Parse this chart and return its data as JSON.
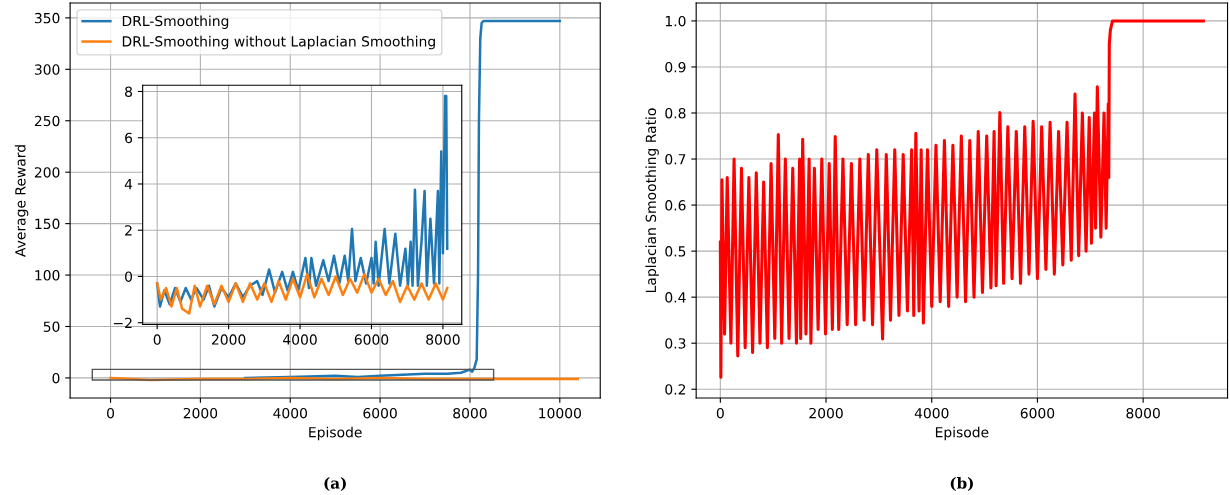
{
  "chart_data": [
    {
      "type": "line",
      "xlabel": "Episode",
      "ylabel": "Average Reward",
      "xlim": [
        -900,
        10900
      ],
      "ylim": [
        -19.5,
        364.5
      ],
      "xticks": [
        0,
        2000,
        4000,
        6000,
        8000,
        10000
      ],
      "yticks": [
        0,
        50,
        100,
        150,
        200,
        250,
        300,
        350
      ],
      "grid": true,
      "legend": "top left",
      "annotations": [
        "(a)"
      ],
      "series": [
        {
          "name": "DRL-Smoothing",
          "color": "#1f77b4",
          "x": [
            3000,
            4000,
            5000,
            5500,
            6000,
            7000,
            7500,
            7800,
            8000,
            8050,
            8100,
            8150,
            8180,
            8200,
            8230,
            8260,
            8300,
            10000
          ],
          "values": [
            0,
            1,
            2,
            1,
            2,
            4,
            4,
            5,
            8,
            6,
            10,
            18,
            100,
            250,
            330,
            345,
            347,
            347
          ]
        },
        {
          "name": "DRL-Smoothing without Laplacian Smoothing",
          "color": "#ff7f0e",
          "x": [
            0,
            900,
            2000,
            3000,
            4000,
            5000,
            6000,
            7000,
            8000,
            9000,
            10000,
            10400
          ],
          "values": [
            0,
            -2,
            -1,
            -1,
            0,
            -1,
            0,
            -1,
            -1,
            -1,
            -1,
            -1
          ]
        }
      ]
    },
    {
      "type": "line",
      "xlim": [
        -406,
        8527
      ],
      "ylim": [
        -2.07,
        8.27
      ],
      "xticks": [
        0,
        2000,
        4000,
        6000,
        8000
      ],
      "yticks": [
        {
          "value": -2,
          "label": "−2"
        },
        0,
        2,
        4,
        6,
        8
      ],
      "grid": true,
      "series": [
        {
          "color": "#1f77b4",
          "x": [
            0,
            80,
            200,
            350,
            500,
            650,
            800,
            950,
            1100,
            1300,
            1450,
            1600,
            1800,
            2000,
            2200,
            2400,
            2600,
            2800,
            2950,
            3133,
            3300,
            3500,
            3650,
            3800,
            3950,
            4150,
            4250,
            4317,
            4450,
            4650,
            4800,
            4950,
            5100,
            5250,
            5350,
            5455,
            5550,
            5700,
            5850,
            6000,
            6060,
            6117,
            6200,
            6368,
            6500,
            6667,
            6800,
            6950,
            7020,
            7096,
            7150,
            7217,
            7300,
            7400,
            7487,
            7550,
            7650,
            7750,
            7860,
            7900,
            7953,
            8000,
            8060,
            8093,
            8121
          ],
          "values": [
            -0.3,
            -1.3,
            -0.6,
            -1.2,
            -0.5,
            -1.1,
            -0.5,
            -1.0,
            -0.5,
            -1.0,
            -0.4,
            -1.3,
            -0.5,
            -0.9,
            -0.3,
            -0.9,
            -0.4,
            -0.2,
            -0.8,
            0.3,
            -0.7,
            0.2,
            -0.6,
            0.2,
            -0.6,
            0.8,
            -0.5,
            0.8,
            -0.4,
            0.7,
            -0.2,
            0.9,
            -0.3,
            0.9,
            -0.2,
            2.05,
            -0.2,
            0.8,
            -0.3,
            0.8,
            -0.3,
            1.5,
            -0.4,
            2.05,
            -0.3,
            1.85,
            -0.4,
            1.2,
            -0.4,
            1.5,
            -0.4,
            3.75,
            -0.4,
            1.5,
            3.7,
            -0.4,
            2.5,
            -0.3,
            3.7,
            -0.3,
            5.4,
            1.0,
            7.8,
            7.8,
            1.2
          ]
        },
        {
          "color": "#ff7f0e",
          "x": [
            0,
            100,
            250,
            400,
            550,
            700,
            895,
            1050,
            1200,
            1400,
            1600,
            1800,
            2000,
            2200,
            2400,
            2600,
            2800,
            3000,
            3200,
            3400,
            3600,
            3800,
            4000,
            4200,
            4400,
            4600,
            4800,
            5000,
            5200,
            5400,
            5600,
            5800,
            6000,
            6200,
            6400,
            6600,
            6800,
            7000,
            7200,
            7400,
            7600,
            7800,
            8000,
            8121
          ],
          "values": [
            -0.3,
            -1.0,
            -0.5,
            -1.3,
            -0.5,
            -1.4,
            -1.6,
            -0.4,
            -1.3,
            -0.4,
            -1.2,
            -0.4,
            -1.1,
            -0.3,
            -1.1,
            -0.3,
            -1.0,
            -0.3,
            -1.1,
            -0.2,
            -1.0,
            -0.1,
            -0.9,
            0.1,
            -0.9,
            -0.1,
            -0.8,
            0.0,
            -0.8,
            -0.1,
            -0.7,
            0.1,
            -0.7,
            -0.1,
            -0.8,
            -0.2,
            -1.1,
            -0.4,
            -1.0,
            -0.3,
            -1.0,
            -0.3,
            -1.0,
            -0.5
          ]
        }
      ]
    },
    {
      "type": "line",
      "xlabel": "Episode",
      "ylabel": "Laplacian Smoothing Ratio",
      "xlim": [
        -457,
        9597
      ],
      "ylim": [
        0.181,
        1.039
      ],
      "xticks": [
        0,
        2000,
        4000,
        6000,
        8000
      ],
      "yticks": [
        0.2,
        0.3,
        0.4,
        0.5,
        0.6,
        0.7,
        0.8,
        0.9,
        {
          "value": 1,
          "label": "1.0"
        }
      ],
      "grid": true,
      "annotations": [
        "(b)"
      ],
      "series": [
        {
          "color": "#ff0000",
          "x": [
            0,
            10,
            30,
            80,
            130,
            200,
            260,
            330,
            400,
            470,
            540,
            610,
            680,
            750,
            820,
            890,
            960,
            1030,
            1097,
            1160,
            1230,
            1300,
            1370,
            1440,
            1500,
            1520,
            1558,
            1620,
            1680,
            1713,
            1780,
            1850,
            1920,
            1990,
            2060,
            2120,
            2174,
            2240,
            2320,
            2400,
            2480,
            2560,
            2640,
            2720,
            2800,
            2880,
            2960,
            3070,
            3140,
            3220,
            3300,
            3380,
            3460,
            3540,
            3620,
            3660,
            3699,
            3760,
            3800,
            3842,
            3920,
            4000,
            4080,
            4160,
            4240,
            4320,
            4400,
            4480,
            4560,
            4640,
            4720,
            4800,
            4880,
            4960,
            5040,
            5120,
            5180,
            5218,
            5289,
            5360,
            5440,
            5520,
            5600,
            5680,
            5760,
            5840,
            5919,
            6000,
            6080,
            6160,
            6240,
            6320,
            6400,
            6480,
            6560,
            6640,
            6711,
            6780,
            6850,
            6920,
            6980,
            7022,
            7080,
            7100,
            7133,
            7200,
            7260,
            7300,
            7340,
            7350,
            7360,
            7380,
            7420,
            9140
          ],
          "values": [
            0.52,
            0.226,
            0.655,
            0.32,
            0.66,
            0.3,
            0.7,
            0.272,
            0.68,
            0.29,
            0.66,
            0.28,
            0.67,
            0.3,
            0.65,
            0.29,
            0.69,
            0.31,
            0.753,
            0.3,
            0.7,
            0.31,
            0.68,
            0.3,
            0.7,
            0.31,
            0.743,
            0.32,
            0.7,
            0.3,
            0.68,
            0.33,
            0.7,
            0.32,
            0.69,
            0.33,
            0.749,
            0.33,
            0.7,
            0.34,
            0.69,
            0.34,
            0.7,
            0.35,
            0.71,
            0.34,
            0.72,
            0.309,
            0.71,
            0.35,
            0.72,
            0.36,
            0.71,
            0.37,
            0.72,
            0.36,
            0.756,
            0.37,
            0.72,
            0.344,
            0.72,
            0.38,
            0.73,
            0.39,
            0.74,
            0.38,
            0.73,
            0.4,
            0.75,
            0.39,
            0.74,
            0.4,
            0.76,
            0.41,
            0.75,
            0.42,
            0.76,
            0.425,
            0.801,
            0.43,
            0.77,
            0.44,
            0.76,
            0.43,
            0.77,
            0.45,
            0.782,
            0.44,
            0.77,
            0.46,
            0.78,
            0.45,
            0.76,
            0.47,
            0.78,
            0.48,
            0.841,
            0.49,
            0.8,
            0.5,
            0.79,
            0.517,
            0.8,
            0.55,
            0.857,
            0.53,
            0.8,
            0.55,
            0.82,
            0.66,
            0.95,
            0.98,
            1.0,
            1.0
          ]
        }
      ]
    }
  ]
}
